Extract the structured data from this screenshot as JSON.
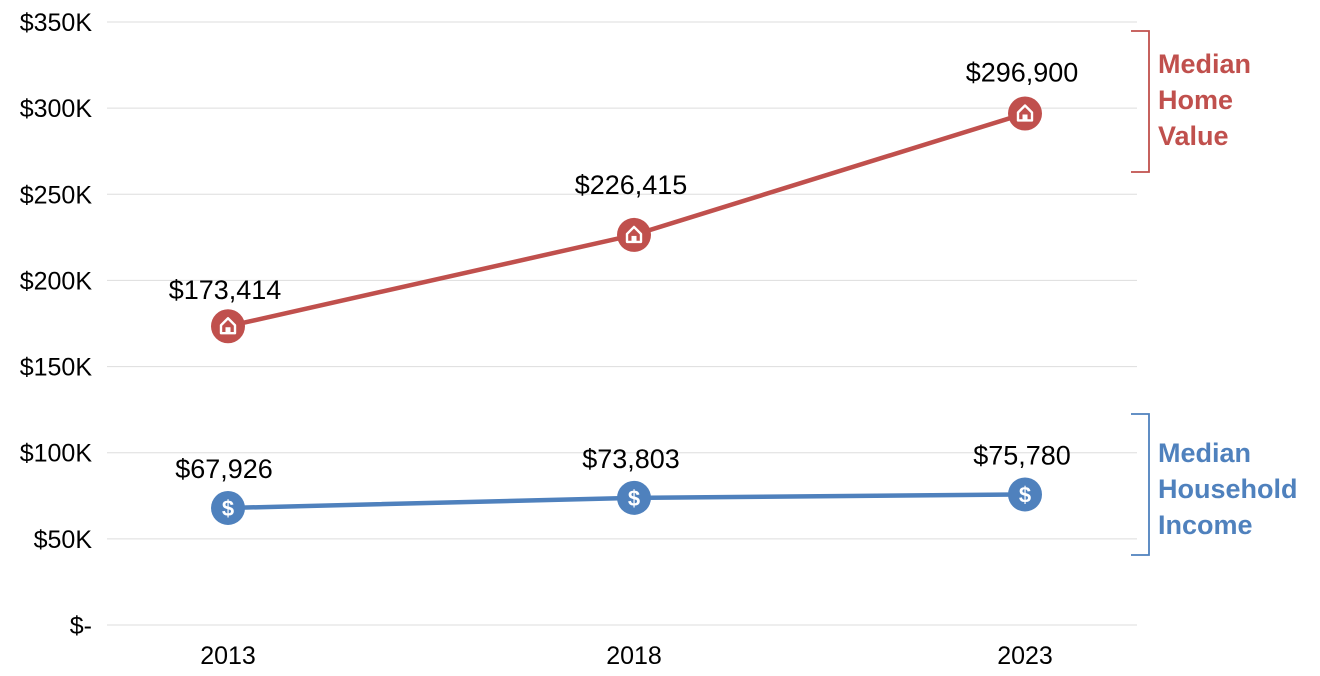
{
  "chart_data": {
    "type": "line",
    "x": [
      "2013",
      "2018",
      "2023"
    ],
    "y_ticks": [
      "$-",
      "$50K",
      "$100K",
      "$150K",
      "$200K",
      "$250K",
      "$300K",
      "$350K"
    ],
    "ylim": [
      0,
      350000
    ],
    "grid": true,
    "legend": "right",
    "series": [
      {
        "name": "Median Home Value",
        "name_lines": [
          "Median",
          "Home",
          "Value"
        ],
        "values": [
          173414,
          226415,
          296900
        ],
        "labels": [
          "$173,414",
          "$226,415",
          "$296,900"
        ],
        "color": "#c0504d",
        "marker_icon": "home-icon"
      },
      {
        "name": "Median Household Income",
        "name_lines": [
          "Median",
          "Household",
          "Income"
        ],
        "values": [
          67926,
          73803,
          75780
        ],
        "labels": [
          "$67,926",
          "$73,803",
          "$75,780"
        ],
        "color": "#4f81bd",
        "marker_icon": "dollar-icon"
      }
    ]
  }
}
